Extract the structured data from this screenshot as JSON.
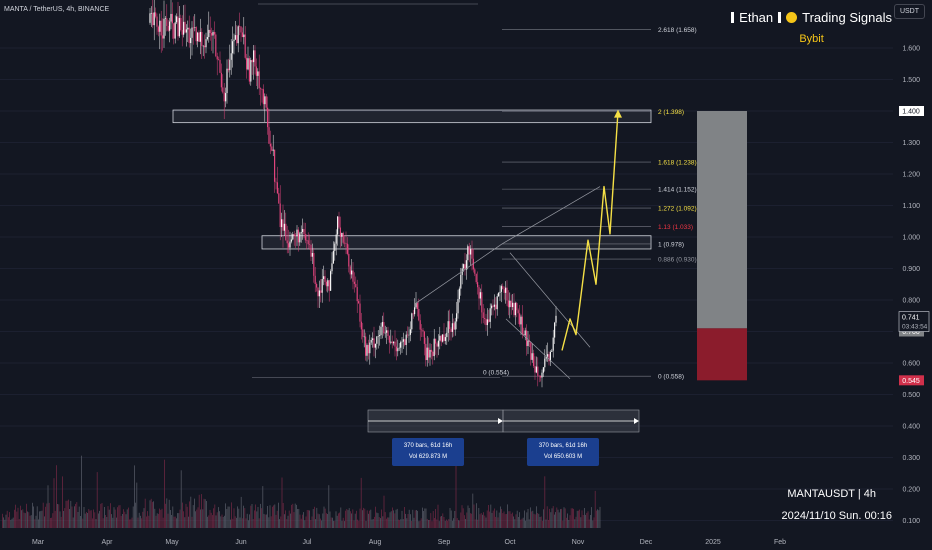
{
  "header": {
    "symbol_line": "MANTA / TetherUS, 4h, BINANCE",
    "brand_name": "Ethan",
    "brand_tag": "Trading Signals",
    "brand_sub": "Bybit",
    "currency": "USDT"
  },
  "footer": {
    "pair": "MANTAUSDT | 4h",
    "datetime": "2024/11/10 Sun. 00:16"
  },
  "colors": {
    "background": "#131722",
    "up_candle": "#f2f2f2",
    "down_candle": "#e0447c",
    "projection": "#f5e046",
    "fib_highlight": "#f5e046",
    "fib_red": "#f23645",
    "zone_loss": "#8b1c2c",
    "zone_gain": "#808386",
    "info_box": "#1b3f8f"
  },
  "chart_data": {
    "type": "candlestick",
    "title": "MANTA / TetherUS, 4h, BINANCE",
    "x_tick_labels": [
      "Mar",
      "Apr",
      "May",
      "Jun",
      "Jul",
      "Aug",
      "Sep",
      "Oct",
      "Nov",
      "Dec",
      "2025",
      "Feb"
    ],
    "y_tick_labels": [
      "1.600",
      "1.500",
      "1.400",
      "1.300",
      "1.200",
      "1.100",
      "1.000",
      "0.900",
      "0.800",
      "0.700",
      "0.600",
      "0.500",
      "0.400",
      "0.300",
      "0.200",
      "0.100"
    ],
    "ylim": [
      0.08,
      1.72
    ],
    "price_path": [
      [
        0,
        1.68
      ],
      [
        16,
        1.66
      ],
      [
        24,
        1.62
      ],
      [
        31,
        1.65
      ],
      [
        37,
        1.46
      ],
      [
        41,
        1.59
      ],
      [
        46,
        1.66
      ],
      [
        49,
        1.53
      ],
      [
        53,
        1.56
      ],
      [
        57,
        1.42
      ],
      [
        61,
        1.28
      ],
      [
        65,
        1.05
      ],
      [
        70,
        0.99
      ],
      [
        75,
        1.01
      ],
      [
        80,
        0.97
      ],
      [
        84,
        0.82
      ],
      [
        87,
        0.88
      ],
      [
        90,
        0.85
      ],
      [
        94,
        1.05
      ],
      [
        97,
        0.99
      ],
      [
        101,
        0.88
      ],
      [
        104,
        0.8
      ],
      [
        108,
        0.63
      ],
      [
        112,
        0.67
      ],
      [
        116,
        0.71
      ],
      [
        120,
        0.66
      ],
      [
        125,
        0.66
      ],
      [
        129,
        0.67
      ],
      [
        133,
        0.8
      ],
      [
        138,
        0.62
      ],
      [
        143,
        0.66
      ],
      [
        148,
        0.7
      ],
      [
        152,
        0.73
      ],
      [
        156,
        0.88
      ],
      [
        160,
        0.97
      ],
      [
        164,
        0.84
      ],
      [
        168,
        0.72
      ],
      [
        172,
        0.78
      ],
      [
        176,
        0.84
      ],
      [
        180,
        0.79
      ],
      [
        184,
        0.76
      ],
      [
        188,
        0.67
      ],
      [
        192,
        0.6
      ],
      [
        196,
        0.57
      ],
      [
        200,
        0.62
      ],
      [
        203,
        0.74
      ]
    ],
    "volume_envelope": [
      [
        0,
        0.22
      ],
      [
        10,
        0.26
      ],
      [
        20,
        0.3
      ],
      [
        30,
        0.27
      ],
      [
        40,
        0.25
      ],
      [
        50,
        0.32
      ],
      [
        58,
        0.3
      ],
      [
        66,
        0.36
      ],
      [
        74,
        0.28
      ],
      [
        82,
        0.24
      ],
      [
        92,
        0.27
      ],
      [
        102,
        0.24
      ],
      [
        112,
        0.22
      ],
      [
        120,
        0.2
      ],
      [
        130,
        0.24
      ],
      [
        140,
        0.21
      ],
      [
        150,
        0.2
      ],
      [
        158,
        0.26
      ],
      [
        166,
        0.27
      ],
      [
        174,
        0.22
      ],
      [
        182,
        0.22
      ],
      [
        190,
        0.23
      ],
      [
        196,
        0.24
      ],
      [
        203,
        0.22
      ]
    ],
    "current_price": {
      "value": 0.741,
      "label": "0.741",
      "countdown": "03:43:54"
    },
    "axis_marks": [
      {
        "value": 1.4,
        "label": "1.400"
      },
      {
        "value": 0.7,
        "label": "0.700"
      },
      {
        "value": 0.545,
        "label": "0.545"
      }
    ],
    "fib_levels": [
      {
        "ratio": "2.618",
        "price": 1.658,
        "label": "2.618 (1.658)",
        "style": "normal"
      },
      {
        "ratio": "2",
        "price": 1.398,
        "label": "2 (1.398)",
        "style": "highlight"
      },
      {
        "ratio": "1.618",
        "price": 1.238,
        "label": "1.618 (1.238)",
        "style": "highlight"
      },
      {
        "ratio": "1.414",
        "price": 1.152,
        "label": "1.414 (1.152)",
        "style": "normal"
      },
      {
        "ratio": "1.272",
        "price": 1.092,
        "label": "1.272 (1.092)",
        "style": "highlight"
      },
      {
        "ratio": "1.13",
        "price": 1.033,
        "label": "1.13 (1.033)",
        "style": "red"
      },
      {
        "ratio": "1",
        "price": 0.978,
        "label": "1 (0.978)",
        "style": "normal"
      },
      {
        "ratio": "0.886",
        "price": 0.93,
        "label": "0.886 (0.930)",
        "style": "gray"
      },
      {
        "ratio": "0",
        "price": 0.558,
        "label": "0 (0.558)",
        "style": "normal"
      }
    ],
    "left_fib_zero": {
      "price": 0.554,
      "label": "0 (0.554)"
    },
    "zones": [
      {
        "price_top": 1.403,
        "price_bottom": 1.363,
        "x_start": 61,
        "x_end": 262
      },
      {
        "price_top": 1.004,
        "price_bottom": 0.962,
        "x_start": 91,
        "x_end": 262
      }
    ],
    "trend_lines": [
      {
        "from": [
          133,
          0.79
        ],
        "to": [
          176,
          0.978
        ]
      },
      {
        "from": [
          176,
          0.978
        ],
        "to": [
          225,
          1.16
        ]
      },
      {
        "from": [
          180,
          0.95
        ],
        "to": [
          220,
          0.65
        ]
      },
      {
        "from": [
          178,
          0.74
        ],
        "to": [
          210,
          0.55
        ]
      }
    ],
    "projection": [
      [
        206,
        0.64
      ],
      [
        210,
        0.74
      ],
      [
        213,
        0.69
      ],
      [
        219,
        0.99
      ],
      [
        223,
        0.85
      ],
      [
        227,
        1.16
      ],
      [
        230,
        1.01
      ],
      [
        234,
        1.398
      ]
    ],
    "risk_zone": {
      "entry": 0.71,
      "stop": 0.545,
      "target": 1.4
    },
    "measure_tools": [
      {
        "bars": "370 bars, 61d 16h",
        "vol": "Vol 629.873 M"
      },
      {
        "bars": "370 bars, 61d 16h",
        "vol": "Vol 650.603 M"
      }
    ]
  }
}
